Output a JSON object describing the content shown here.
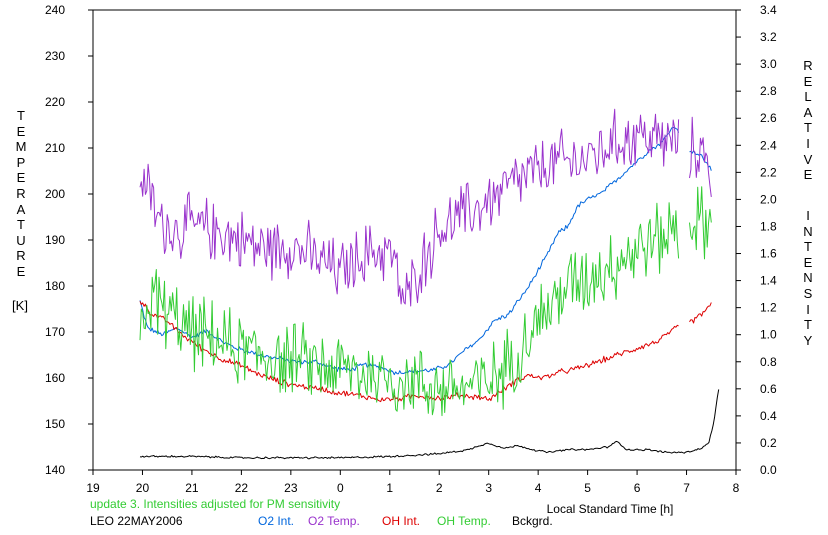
{
  "ylabel_left": "TEMPERATURE",
  "ylabel_unit": "[K]",
  "ylabel_right_1": "RELATIVE",
  "ylabel_right_2": "INTENSITY",
  "footer": {
    "note": "update 3. Intensities adjusted for PM sensitivity",
    "station": "LEO 22MAY2006"
  },
  "colors": {
    "o2_int": "#0066dd",
    "o2_temp": "#9933cc",
    "oh_int": "#dd0000",
    "oh_temp": "#33cc33",
    "bckgrd": "#000000",
    "note": "#33cc33"
  },
  "chart_data": {
    "type": "line",
    "xlabel": "Local Standard Time [h]",
    "x_range": [
      19,
      32
    ],
    "x_tick_labels": [
      "19",
      "20",
      "21",
      "22",
      "23",
      "0",
      "1",
      "2",
      "3",
      "4",
      "5",
      "6",
      "7",
      "8"
    ],
    "ylim_left": [
      140,
      240
    ],
    "ylim_left_ticks": [
      140,
      150,
      160,
      170,
      180,
      190,
      200,
      210,
      220,
      230,
      240
    ],
    "ylim_right": [
      0.0,
      3.4
    ],
    "ylim_right_ticks": [
      "0.0",
      "0.2",
      "0.4",
      "0.6",
      "0.8",
      "1.0",
      "1.2",
      "1.4",
      "1.6",
      "1.8",
      "2.0",
      "2.2",
      "2.4",
      "2.6",
      "2.8",
      "3.0",
      "3.2",
      "3.4"
    ],
    "legend_position": "bottom",
    "gap": [
      30.85,
      31.05
    ],
    "series": [
      {
        "name": "O2 Int.",
        "axis": "right",
        "color": "#0066dd",
        "noise": 0.015,
        "clip_gap": true,
        "points": [
          [
            19.95,
            1.25
          ],
          [
            20.1,
            1.05
          ],
          [
            20.4,
            1.0
          ],
          [
            20.7,
            1.05
          ],
          [
            21.0,
            0.98
          ],
          [
            21.3,
            1.03
          ],
          [
            21.6,
            0.95
          ],
          [
            21.9,
            0.9
          ],
          [
            22.2,
            0.87
          ],
          [
            22.5,
            0.84
          ],
          [
            22.8,
            0.82
          ],
          [
            23.1,
            0.8
          ],
          [
            23.5,
            0.8
          ],
          [
            23.9,
            0.75
          ],
          [
            24.2,
            0.74
          ],
          [
            24.5,
            0.78
          ],
          [
            24.8,
            0.76
          ],
          [
            25.1,
            0.72
          ],
          [
            25.5,
            0.73
          ],
          [
            25.9,
            0.74
          ],
          [
            26.2,
            0.78
          ],
          [
            26.5,
            0.88
          ],
          [
            26.8,
            0.96
          ],
          [
            27.1,
            1.1
          ],
          [
            27.4,
            1.15
          ],
          [
            27.8,
            1.35
          ],
          [
            28.2,
            1.6
          ],
          [
            28.4,
            1.75
          ],
          [
            28.6,
            1.8
          ],
          [
            28.8,
            1.95
          ],
          [
            29.0,
            2.0
          ],
          [
            29.3,
            2.05
          ],
          [
            29.6,
            2.15
          ],
          [
            29.9,
            2.25
          ],
          [
            30.2,
            2.35
          ],
          [
            30.5,
            2.42
          ],
          [
            30.75,
            2.55
          ],
          [
            31.0,
            2.38
          ],
          [
            31.3,
            2.32
          ],
          [
            31.5,
            2.22
          ]
        ]
      },
      {
        "name": "O2 Temp.",
        "axis": "left",
        "color": "#9933cc",
        "noise": 5.5,
        "clip_gap": true,
        "points": [
          [
            19.95,
            205
          ],
          [
            20.3,
            195
          ],
          [
            20.6,
            192
          ],
          [
            21.0,
            193
          ],
          [
            21.5,
            192
          ],
          [
            22.0,
            190
          ],
          [
            22.5,
            188
          ],
          [
            23.0,
            189
          ],
          [
            23.5,
            186
          ],
          [
            24.0,
            183
          ],
          [
            24.5,
            187
          ],
          [
            25.0,
            188
          ],
          [
            25.3,
            176
          ],
          [
            25.6,
            184
          ],
          [
            26.0,
            192
          ],
          [
            26.4,
            195
          ],
          [
            26.8,
            197
          ],
          [
            27.2,
            200
          ],
          [
            27.6,
            203
          ],
          [
            28.0,
            205
          ],
          [
            28.4,
            207
          ],
          [
            28.8,
            207
          ],
          [
            29.2,
            209
          ],
          [
            29.5,
            211
          ],
          [
            29.8,
            212
          ],
          [
            30.1,
            213
          ],
          [
            30.4,
            212
          ],
          [
            30.7,
            211
          ],
          [
            31.0,
            209
          ],
          [
            31.3,
            210
          ],
          [
            31.5,
            203
          ]
        ]
      },
      {
        "name": "OH Int.",
        "axis": "right",
        "color": "#dd0000",
        "noise": 0.018,
        "clip_gap": true,
        "points": [
          [
            19.95,
            1.25
          ],
          [
            20.2,
            1.15
          ],
          [
            20.5,
            1.1
          ],
          [
            20.8,
            1.0
          ],
          [
            21.2,
            0.9
          ],
          [
            21.6,
            0.82
          ],
          [
            22.0,
            0.77
          ],
          [
            22.4,
            0.7
          ],
          [
            22.8,
            0.65
          ],
          [
            23.2,
            0.62
          ],
          [
            23.6,
            0.6
          ],
          [
            24.0,
            0.57
          ],
          [
            24.4,
            0.55
          ],
          [
            24.8,
            0.52
          ],
          [
            25.2,
            0.53
          ],
          [
            25.6,
            0.55
          ],
          [
            26.0,
            0.53
          ],
          [
            26.4,
            0.55
          ],
          [
            26.8,
            0.54
          ],
          [
            27.0,
            0.52
          ],
          [
            27.3,
            0.6
          ],
          [
            27.6,
            0.67
          ],
          [
            27.8,
            0.7
          ],
          [
            28.1,
            0.68
          ],
          [
            28.4,
            0.72
          ],
          [
            28.8,
            0.75
          ],
          [
            29.2,
            0.8
          ],
          [
            29.6,
            0.85
          ],
          [
            30.0,
            0.9
          ],
          [
            30.4,
            0.95
          ],
          [
            30.8,
            1.05
          ],
          [
            31.2,
            1.12
          ],
          [
            31.5,
            1.22
          ]
        ]
      },
      {
        "name": "OH Temp.",
        "axis": "left",
        "color": "#33cc33",
        "noise": 6.5,
        "clip_gap": true,
        "points": [
          [
            19.95,
            170
          ],
          [
            20.2,
            178
          ],
          [
            20.5,
            174
          ],
          [
            21.0,
            170
          ],
          [
            21.5,
            168
          ],
          [
            22.0,
            166
          ],
          [
            22.5,
            165
          ],
          [
            23.0,
            164
          ],
          [
            23.5,
            163
          ],
          [
            24.0,
            162
          ],
          [
            24.5,
            161
          ],
          [
            25.0,
            160
          ],
          [
            25.5,
            159
          ],
          [
            26.0,
            158
          ],
          [
            26.5,
            158
          ],
          [
            27.0,
            159
          ],
          [
            27.4,
            163
          ],
          [
            27.8,
            170
          ],
          [
            28.2,
            175
          ],
          [
            28.6,
            180
          ],
          [
            29.0,
            182
          ],
          [
            29.5,
            185
          ],
          [
            30.0,
            188
          ],
          [
            30.4,
            190
          ],
          [
            30.8,
            193
          ],
          [
            31.2,
            194
          ],
          [
            31.5,
            193
          ]
        ]
      },
      {
        "name": "Bckgrd.",
        "axis": "right",
        "color": "#000000",
        "noise": 0.006,
        "clip_gap": false,
        "points": [
          [
            19.95,
            0.1
          ],
          [
            21.0,
            0.1
          ],
          [
            22.0,
            0.09
          ],
          [
            23.0,
            0.09
          ],
          [
            24.0,
            0.09
          ],
          [
            25.0,
            0.1
          ],
          [
            26.0,
            0.12
          ],
          [
            26.6,
            0.15
          ],
          [
            26.8,
            0.18
          ],
          [
            27.0,
            0.2
          ],
          [
            27.3,
            0.16
          ],
          [
            27.6,
            0.18
          ],
          [
            27.9,
            0.15
          ],
          [
            28.2,
            0.13
          ],
          [
            28.6,
            0.15
          ],
          [
            29.0,
            0.15
          ],
          [
            29.4,
            0.17
          ],
          [
            29.6,
            0.21
          ],
          [
            29.8,
            0.15
          ],
          [
            30.2,
            0.15
          ],
          [
            30.6,
            0.13
          ],
          [
            31.0,
            0.13
          ],
          [
            31.3,
            0.16
          ],
          [
            31.45,
            0.2
          ],
          [
            31.55,
            0.35
          ],
          [
            31.65,
            0.6
          ]
        ]
      }
    ]
  }
}
